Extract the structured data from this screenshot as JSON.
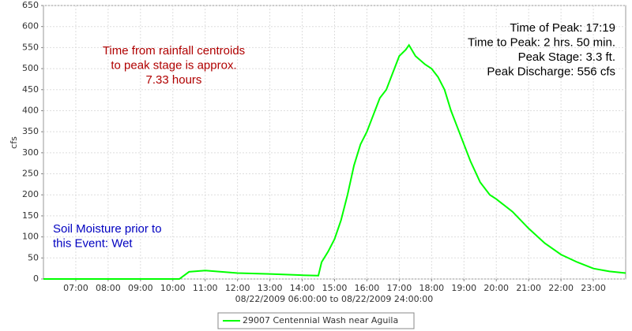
{
  "chart_data": {
    "type": "line",
    "y_label": "cfs",
    "x_label": "08/22/2009 06:00:00 to 08/22/2009 24:00:00",
    "xlim": [
      6,
      24
    ],
    "xticks": [
      {
        "value": 7,
        "label": "07:00"
      },
      {
        "value": 8,
        "label": "08:00"
      },
      {
        "value": 9,
        "label": "09:00"
      },
      {
        "value": 10,
        "label": "10:00"
      },
      {
        "value": 11,
        "label": "11:00"
      },
      {
        "value": 12,
        "label": "12:00"
      },
      {
        "value": 13,
        "label": "13:00"
      },
      {
        "value": 14,
        "label": "14:00"
      },
      {
        "value": 15,
        "label": "15:00"
      },
      {
        "value": 16,
        "label": "16:00"
      },
      {
        "value": 17,
        "label": "17:00"
      },
      {
        "value": 18,
        "label": "18:00"
      },
      {
        "value": 19,
        "label": "19:00"
      },
      {
        "value": 20,
        "label": "20:00"
      },
      {
        "value": 21,
        "label": "21:00"
      },
      {
        "value": 22,
        "label": "22:00"
      },
      {
        "value": 23,
        "label": "23:00"
      }
    ],
    "ylim": [
      0,
      650
    ],
    "yticks": [
      0,
      50,
      100,
      150,
      200,
      250,
      300,
      350,
      400,
      450,
      500,
      550,
      600,
      650
    ],
    "grid": true,
    "x": [
      6,
      10.2,
      10.5,
      11,
      12,
      13,
      14,
      14.5,
      14.6,
      14.8,
      15,
      15.2,
      15.4,
      15.6,
      15.8,
      16,
      16.2,
      16.4,
      16.6,
      16.8,
      17,
      17.2,
      17.3,
      17.5,
      17.8,
      18,
      18.2,
      18.4,
      18.6,
      18.8,
      19,
      19.2,
      19.5,
      19.8,
      20,
      20.5,
      21,
      21.5,
      22,
      22.5,
      23,
      23.5,
      24
    ],
    "series": [
      {
        "name": "29007 Centennial Wash near Aguila",
        "color": "#00ff00",
        "values": [
          0,
          0,
          17,
          20,
          14,
          12,
          9,
          8,
          40,
          65,
          95,
          140,
          200,
          270,
          320,
          350,
          390,
          430,
          450,
          490,
          530,
          545,
          556,
          530,
          510,
          500,
          480,
          450,
          400,
          360,
          320,
          280,
          230,
          200,
          190,
          160,
          120,
          85,
          58,
          40,
          25,
          18,
          14
        ]
      }
    ],
    "annotations": [
      {
        "lines": [
          "Time from rainfall centroids",
          "to peak stage is approx.",
          "7.33 hours"
        ],
        "color": "#b00000"
      },
      {
        "lines": [
          "Time of Peak: 17:19",
          "Time to Peak: 2 hrs. 50 min.",
          "Peak Stage: 3.3 ft.",
          "Peak Discharge: 556 cfs"
        ],
        "color": "#000000"
      },
      {
        "lines": [
          "Soil Moisture prior to",
          "this Event: Wet"
        ],
        "color": "#0000c0"
      }
    ]
  }
}
